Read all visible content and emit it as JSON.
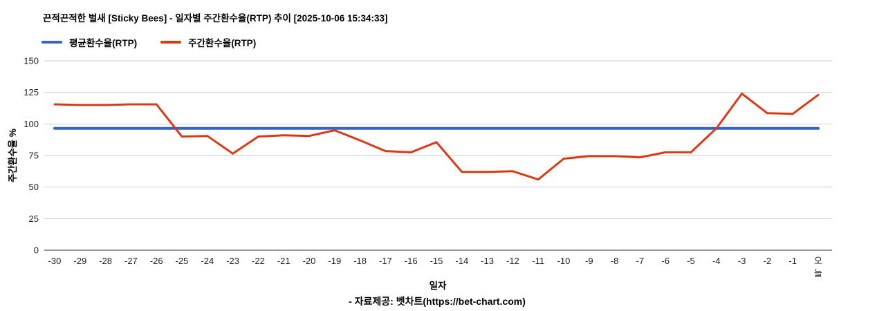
{
  "header": {
    "title": "끈적끈적한 벌새 [Sticky Bees] - 일자별 주간환수율(RTP) 추이 [2025-10-06 15:34:33]"
  },
  "legend": {
    "items": [
      {
        "label": "평균환수율(RTP)",
        "color": "#3366cc"
      },
      {
        "label": "주간환수율(RTP)",
        "color": "#dc3912"
      }
    ]
  },
  "axes": {
    "y_title": "주간환수율 %",
    "x_title": "일자"
  },
  "caption": "- 자료제공: 벳차트(https://bet-chart.com)",
  "chart_data": {
    "type": "line",
    "title": "끈적끈적한 벌새 [Sticky Bees] - 일자별 주간환수율(RTP) 추이 [2025-10-06 15:34:33]",
    "xlabel": "일자",
    "ylabel": "주간환수율 %",
    "ylim": [
      0,
      150
    ],
    "yticks": [
      0,
      25,
      50,
      75,
      100,
      125,
      150
    ],
    "grid": "horizontal",
    "legend_position": "top-left",
    "categories": [
      "-30",
      "-29",
      "-28",
      "-27",
      "-26",
      "-25",
      "-24",
      "-23",
      "-22",
      "-21",
      "-20",
      "-19",
      "-18",
      "-17",
      "-16",
      "-15",
      "-14",
      "-13",
      "-12",
      "-11",
      "-10",
      "-9",
      "-8",
      "-7",
      "-6",
      "-5",
      "-4",
      "-3",
      "-2",
      "-1",
      "오늘"
    ],
    "series": [
      {
        "name": "평균환수율(RTP)",
        "color": "#3366cc",
        "values": [
          96.5,
          96.5,
          96.5,
          96.5,
          96.5,
          96.5,
          96.5,
          96.5,
          96.5,
          96.5,
          96.5,
          96.5,
          96.5,
          96.5,
          96.5,
          96.5,
          96.5,
          96.5,
          96.5,
          96.5,
          96.5,
          96.5,
          96.5,
          96.5,
          96.5,
          96.5,
          96.5,
          96.5,
          96.5,
          96.5,
          96.5
        ]
      },
      {
        "name": "주간환수율(RTP)",
        "color": "#dc3912",
        "values": [
          115.5,
          115,
          115,
          115.5,
          115.5,
          90,
          90.5,
          76.5,
          90,
          91,
          90.5,
          95,
          87,
          78.5,
          77.5,
          85.5,
          62,
          62,
          62.5,
          56,
          72.5,
          74.5,
          74.5,
          73.5,
          77.5,
          77.5,
          96.5,
          124,
          108.5,
          108,
          123
        ]
      }
    ]
  }
}
